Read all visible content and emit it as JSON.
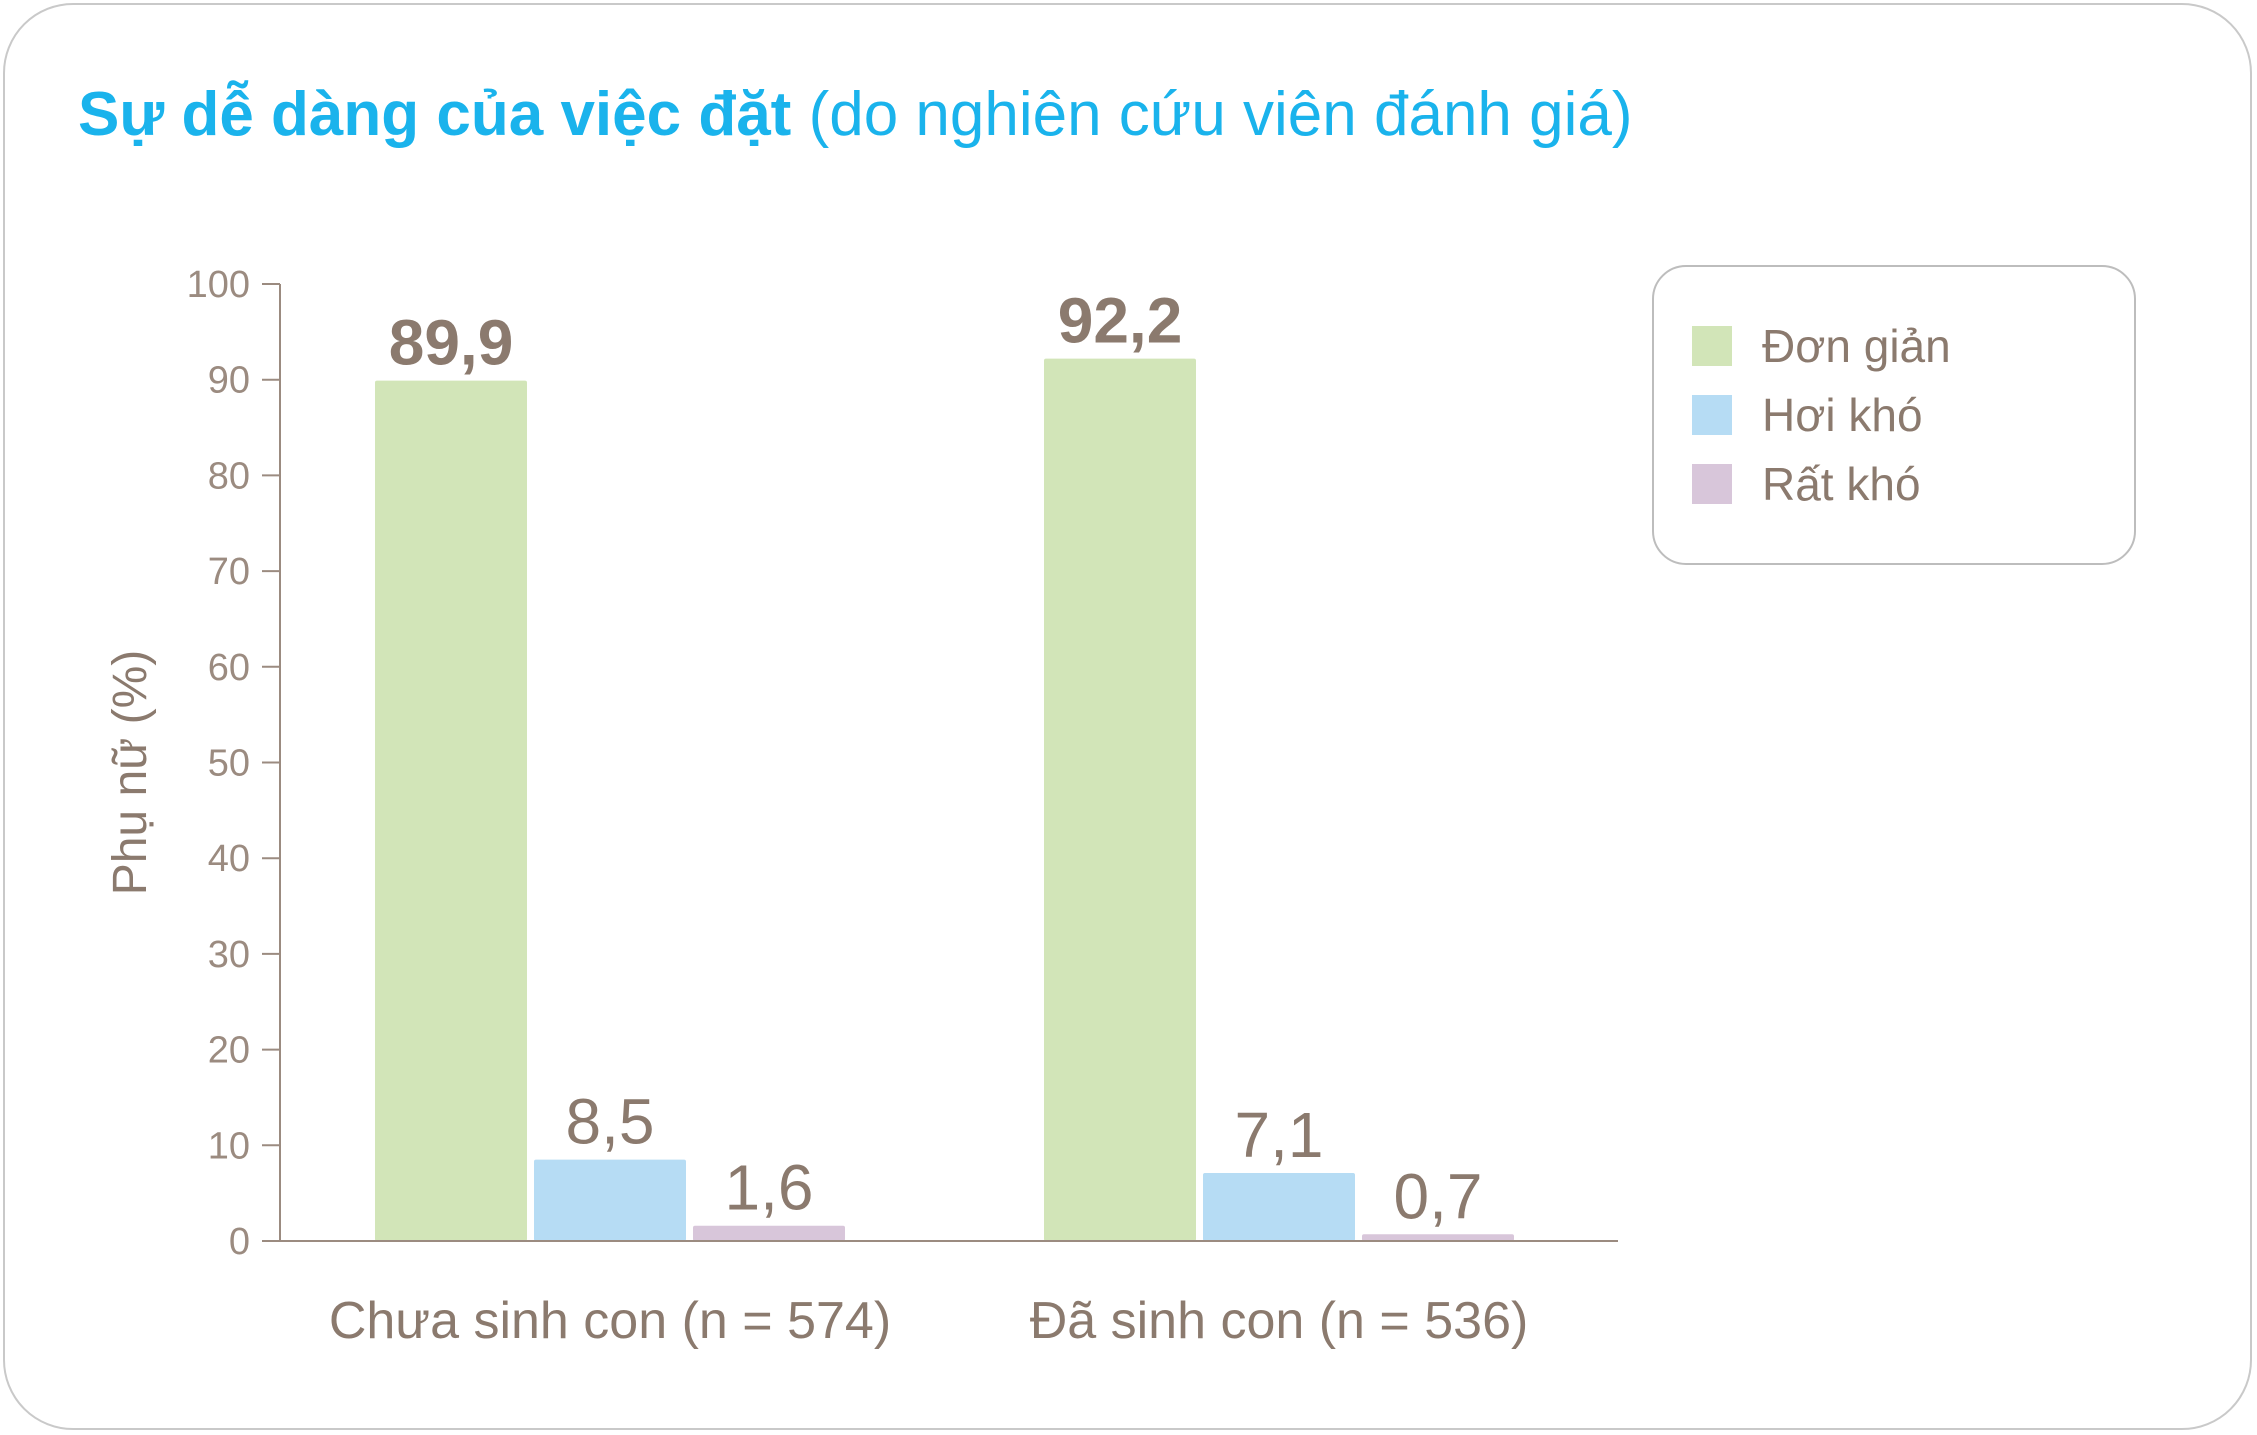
{
  "chart_data": {
    "type": "bar",
    "title_bold": "Sự dễ dàng của việc đặt",
    "title_rest": " (do nghiên cứu viên đánh giá)",
    "ylabel": "Phụ nữ (%)",
    "ylim": [
      0,
      100
    ],
    "yticks": [
      "0",
      "10",
      "20",
      "30",
      "40",
      "50",
      "60",
      "70",
      "80",
      "90",
      "100"
    ],
    "categories": [
      "Chưa sinh con (n = 574)",
      "Đã sinh con (n = 536)"
    ],
    "series": [
      {
        "name": "Đơn giản",
        "color": "#d2e5b8",
        "values": [
          89.9,
          92.2
        ],
        "labels": [
          "89,9",
          "92,2"
        ],
        "label_bold": true
      },
      {
        "name": "Hơi khó",
        "color": "#b6dcf4",
        "values": [
          8.5,
          7.1
        ],
        "labels": [
          "8,5",
          "7,1"
        ],
        "label_bold": false
      },
      {
        "name": "Rất khó",
        "color": "#d8c6da",
        "values": [
          1.6,
          0.7
        ],
        "labels": [
          "1,6",
          "0,7"
        ],
        "label_bold": false
      }
    ],
    "legend_position": "top-right",
    "grid": false
  }
}
